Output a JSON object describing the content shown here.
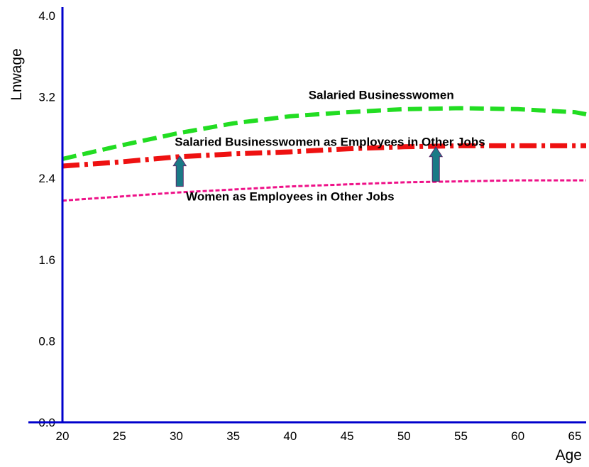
{
  "chart_data": {
    "type": "line",
    "title": "",
    "xlabel": "Age",
    "ylabel": "Lnwage",
    "xlim": [
      20,
      66
    ],
    "ylim": [
      0.0,
      4.0
    ],
    "x_ticks": [
      "20",
      "25",
      "30",
      "35",
      "40",
      "45",
      "50",
      "55",
      "60",
      "65"
    ],
    "y_ticks": [
      "0.0",
      "0.8",
      "1.6",
      "2.4",
      "3.2",
      "4.0"
    ],
    "grid": false,
    "legend": "none",
    "series": [
      {
        "name": "Salaried Businesswomen",
        "color": "#22dd22",
        "style": "dashed",
        "x": [
          20,
          25,
          30,
          35,
          40,
          45,
          50,
          55,
          60,
          65,
          66
        ],
        "y": [
          2.59,
          2.72,
          2.84,
          2.94,
          3.01,
          3.05,
          3.08,
          3.09,
          3.08,
          3.05,
          3.03
        ]
      },
      {
        "name": "Salaried Businesswomen as Employees in Other Jobs",
        "color": "#ee1111",
        "style": "dash-dot",
        "x": [
          20,
          25,
          30,
          35,
          40,
          45,
          50,
          55,
          60,
          65,
          66
        ],
        "y": [
          2.52,
          2.56,
          2.61,
          2.64,
          2.66,
          2.69,
          2.71,
          2.72,
          2.72,
          2.72,
          2.72
        ]
      },
      {
        "name": "Women as Employees in Other Jobs",
        "color": "#ee1188",
        "style": "dotted",
        "x": [
          20,
          25,
          30,
          35,
          40,
          45,
          50,
          55,
          60,
          65,
          66
        ],
        "y": [
          2.18,
          2.22,
          2.26,
          2.29,
          2.32,
          2.34,
          2.36,
          2.37,
          2.38,
          2.38,
          2.38
        ]
      }
    ],
    "annotations": [
      {
        "text": "Salaried Businesswomen",
        "x": 48,
        "y": 3.18
      },
      {
        "text": "Salaried Businesswomen as Employees in Other Jobs",
        "x": 43.5,
        "y": 2.72
      },
      {
        "text": "Women as Employees in Other Jobs",
        "x": 40,
        "y": 2.18
      }
    ],
    "arrows": [
      {
        "x": 30.3,
        "from": 2.32,
        "to": 2.62,
        "color": "#1a7a86"
      },
      {
        "x": 52.8,
        "from": 2.37,
        "to": 2.71,
        "color": "#1a7a86"
      }
    ]
  }
}
